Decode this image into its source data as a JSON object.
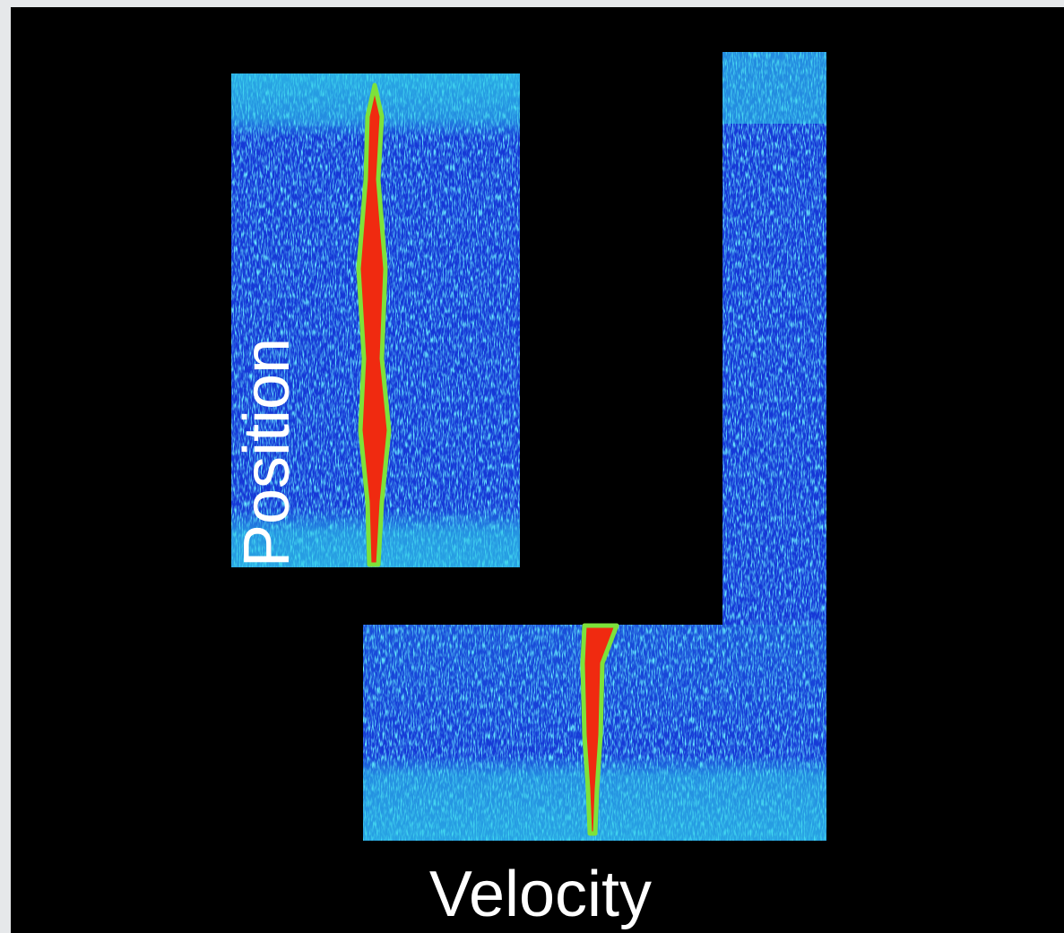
{
  "labels": {
    "y_axis": "Position",
    "x_axis": "Velocity"
  }
}
